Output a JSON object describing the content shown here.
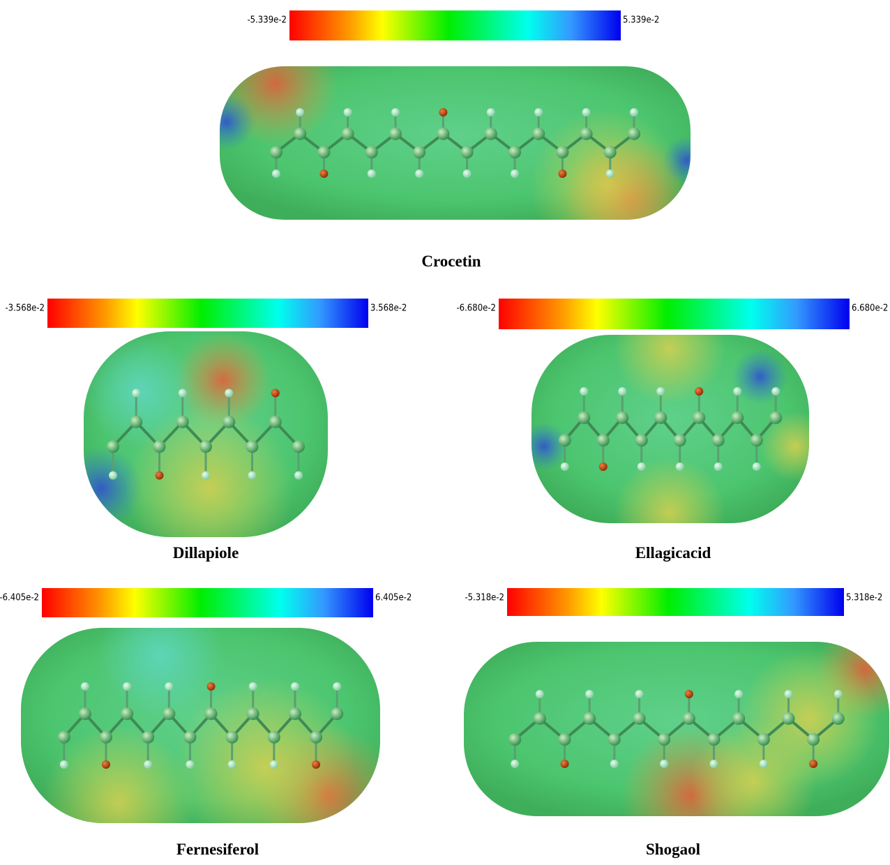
{
  "panels": [
    {
      "title": "Crocetin",
      "scale_min": "-5.339e-2",
      "scale_max": "5.339e-2"
    },
    {
      "title": "Dillapiole",
      "scale_min": "-3.568e-2",
      "scale_max": "3.568e-2"
    },
    {
      "title": "Ellagicacid",
      "scale_min": "-6.680e-2",
      "scale_max": "6.680e-2"
    },
    {
      "title": "Fernesiferol",
      "scale_min": "-6.405e-2",
      "scale_max": "6.405e-2"
    },
    {
      "title": "Shogaol",
      "scale_min": "-5.318e-2",
      "scale_max": "5.318e-2"
    }
  ]
}
